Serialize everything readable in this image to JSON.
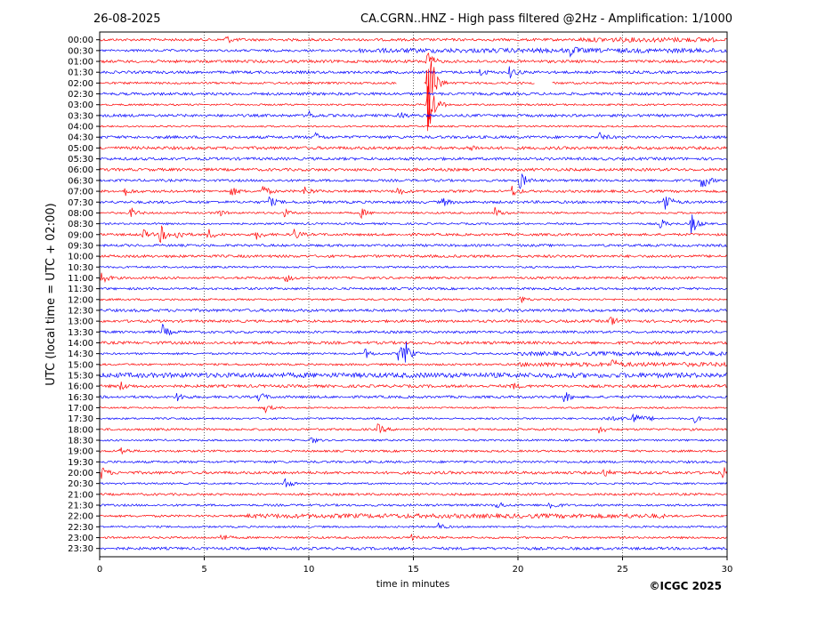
{
  "header": {
    "date": "26-08-2025",
    "title": "CA.CGRN..HNZ - High pass filtered @2Hz - Amplification: 1/1000"
  },
  "footer": {
    "copyright": "©ICGC 2025"
  },
  "colors": {
    "trace_a": "#ff0000",
    "trace_b": "#0000ff",
    "axis": "#000000",
    "grid": "#000000"
  },
  "chart_data": {
    "type": "line",
    "subtype": "helicorder",
    "xlabel": "time in minutes",
    "ylabel": "UTC (local time = UTC + 02:00)",
    "xlim": [
      0,
      30
    ],
    "xticks": [
      0,
      5,
      10,
      15,
      20,
      25,
      30
    ],
    "grid": "vertical dotted lines at x ticks",
    "rows": [
      "00:00",
      "00:30",
      "01:00",
      "01:30",
      "02:00",
      "02:30",
      "03:00",
      "03:30",
      "04:00",
      "04:30",
      "05:00",
      "05:30",
      "06:00",
      "06:30",
      "07:00",
      "07:30",
      "08:00",
      "08:30",
      "09:00",
      "09:30",
      "10:00",
      "10:30",
      "11:00",
      "11:30",
      "12:00",
      "12:30",
      "13:00",
      "13:30",
      "14:00",
      "14:30",
      "15:00",
      "15:30",
      "16:00",
      "16:30",
      "17:00",
      "17:30",
      "18:00",
      "18:30",
      "19:00",
      "19:30",
      "20:00",
      "20:30",
      "21:00",
      "21:30",
      "22:00",
      "22:30",
      "23:00",
      "23:30"
    ],
    "row_colors": "alternating red / blue starting with red",
    "events": [
      {
        "row": "00:00",
        "minute": 6.0,
        "amp": 0.4
      },
      {
        "row": "00:30",
        "minute": 22.5,
        "amp": 0.4
      },
      {
        "row": "01:00",
        "minute": 15.6,
        "amp": 1.2
      },
      {
        "row": "01:30",
        "minute": 19.6,
        "amp": 0.5
      },
      {
        "row": "01:30",
        "minute": 18.2,
        "amp": 0.3
      },
      {
        "row": "02:00",
        "minute": 15.7,
        "amp": 5.0
      },
      {
        "row": "03:00",
        "minute": 15.7,
        "amp": 3.5
      },
      {
        "row": "03:30",
        "minute": 14.3,
        "amp": 0.35
      },
      {
        "row": "03:30",
        "minute": 10.0,
        "amp": 0.3
      },
      {
        "row": "04:30",
        "minute": 10.3,
        "amp": 0.35
      },
      {
        "row": "04:30",
        "minute": 23.9,
        "amp": 0.3
      },
      {
        "row": "05:00",
        "minute": 17.7,
        "amp": 0.3
      },
      {
        "row": "06:30",
        "minute": 20.1,
        "amp": 0.8
      },
      {
        "row": "06:30",
        "minute": 28.8,
        "amp": 0.9
      },
      {
        "row": "07:00",
        "minute": 1.2,
        "amp": 0.35
      },
      {
        "row": "07:00",
        "minute": 6.3,
        "amp": 0.4
      },
      {
        "row": "07:00",
        "minute": 7.8,
        "amp": 0.5
      },
      {
        "row": "07:00",
        "minute": 9.8,
        "amp": 0.45
      },
      {
        "row": "07:00",
        "minute": 14.2,
        "amp": 0.4
      },
      {
        "row": "07:00",
        "minute": 19.7,
        "amp": 0.5
      },
      {
        "row": "07:30",
        "minute": 8.1,
        "amp": 0.45
      },
      {
        "row": "07:30",
        "minute": 16.4,
        "amp": 0.35
      },
      {
        "row": "07:30",
        "minute": 27.0,
        "amp": 1.0
      },
      {
        "row": "08:00",
        "minute": 1.5,
        "amp": 0.45
      },
      {
        "row": "08:00",
        "minute": 5.6,
        "amp": 0.4
      },
      {
        "row": "08:00",
        "minute": 8.8,
        "amp": 0.35
      },
      {
        "row": "08:00",
        "minute": 12.5,
        "amp": 0.4
      },
      {
        "row": "08:00",
        "minute": 18.9,
        "amp": 0.45
      },
      {
        "row": "08:30",
        "minute": 26.8,
        "amp": 0.45
      },
      {
        "row": "08:30",
        "minute": 28.3,
        "amp": 1.0
      },
      {
        "row": "09:00",
        "minute": 2.0,
        "amp": 0.5
      },
      {
        "row": "09:00",
        "minute": 2.9,
        "amp": 0.8
      },
      {
        "row": "09:00",
        "minute": 3.7,
        "amp": 0.5
      },
      {
        "row": "09:00",
        "minute": 5.2,
        "amp": 0.45
      },
      {
        "row": "09:00",
        "minute": 7.5,
        "amp": 0.4
      },
      {
        "row": "09:00",
        "minute": 9.3,
        "amp": 0.45
      },
      {
        "row": "11:00",
        "minute": 0.1,
        "amp": 0.5
      },
      {
        "row": "11:00",
        "minute": 8.9,
        "amp": 0.35
      },
      {
        "row": "12:00",
        "minute": 20.1,
        "amp": 0.3
      },
      {
        "row": "13:00",
        "minute": 24.4,
        "amp": 0.55
      },
      {
        "row": "13:30",
        "minute": 3.0,
        "amp": 0.6
      },
      {
        "row": "14:30",
        "minute": 12.7,
        "amp": 0.4
      },
      {
        "row": "14:30",
        "minute": 14.3,
        "amp": 0.8
      },
      {
        "row": "14:30",
        "minute": 14.6,
        "amp": 0.9
      },
      {
        "row": "15:00",
        "minute": 24.5,
        "amp": 0.35
      },
      {
        "row": "16:00",
        "minute": 1.0,
        "amp": 0.35
      },
      {
        "row": "16:00",
        "minute": 19.7,
        "amp": 0.3
      },
      {
        "row": "16:30",
        "minute": 3.7,
        "amp": 0.4
      },
      {
        "row": "16:30",
        "minute": 7.6,
        "amp": 0.45
      },
      {
        "row": "16:30",
        "minute": 22.2,
        "amp": 0.5
      },
      {
        "row": "17:00",
        "minute": 7.9,
        "amp": 0.4
      },
      {
        "row": "17:30",
        "minute": 25.5,
        "amp": 0.4
      },
      {
        "row": "17:30",
        "minute": 28.4,
        "amp": 0.35
      },
      {
        "row": "18:00",
        "minute": 13.3,
        "amp": 0.45
      },
      {
        "row": "18:00",
        "minute": 23.9,
        "amp": 0.35
      },
      {
        "row": "18:30",
        "minute": 10.1,
        "amp": 0.3
      },
      {
        "row": "19:00",
        "minute": 1.0,
        "amp": 0.4
      },
      {
        "row": "20:00",
        "minute": 0.1,
        "amp": 0.5
      },
      {
        "row": "20:00",
        "minute": 24.1,
        "amp": 0.35
      },
      {
        "row": "20:00",
        "minute": 29.8,
        "amp": 0.45
      },
      {
        "row": "20:30",
        "minute": 8.8,
        "amp": 0.6
      },
      {
        "row": "21:30",
        "minute": 21.5,
        "amp": 0.5
      },
      {
        "row": "21:30",
        "minute": 19.0,
        "amp": 0.35
      },
      {
        "row": "22:30",
        "minute": 16.2,
        "amp": 0.35
      },
      {
        "row": "23:00",
        "minute": 5.8,
        "amp": 0.4
      },
      {
        "row": "23:00",
        "minute": 14.9,
        "amp": 0.4
      }
    ],
    "noisy_segments": [
      {
        "row": "00:00",
        "from": 23.0,
        "to": 29.5
      },
      {
        "row": "00:30",
        "from": 12.0,
        "to": 30.0
      },
      {
        "row": "15:00",
        "from": 20.0,
        "to": 30.0
      },
      {
        "row": "14:30",
        "from": 20.0,
        "to": 30.0
      },
      {
        "row": "15:30",
        "from": 0.0,
        "to": 30.0
      },
      {
        "row": "17:30",
        "from": 24.0,
        "to": 26.5
      },
      {
        "row": "22:00",
        "from": 7.0,
        "to": 27.0
      }
    ],
    "gaps": [
      {
        "row": "02:00",
        "from": 14.2,
        "to": 15.5
      },
      {
        "row": "02:00",
        "from": 20.8,
        "to": 21.6
      }
    ]
  }
}
